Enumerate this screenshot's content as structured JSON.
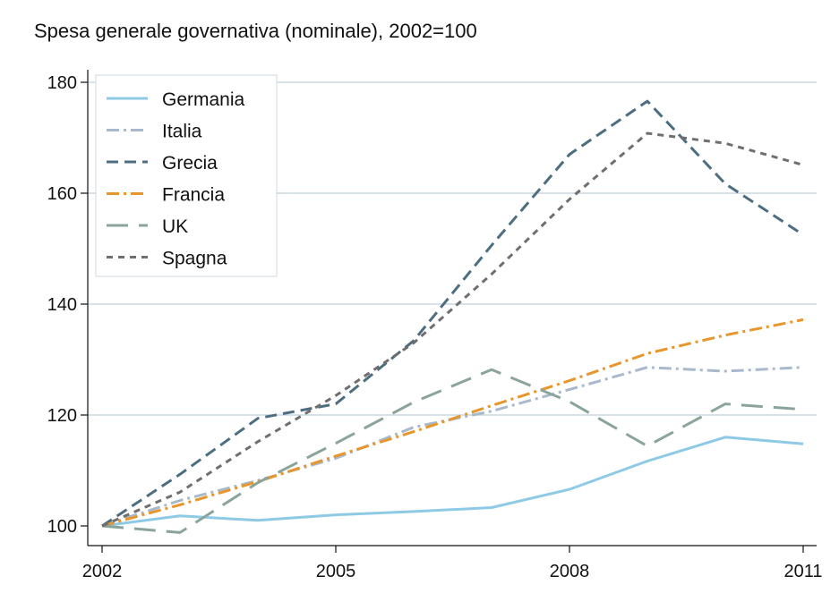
{
  "chart_data": {
    "type": "line",
    "title": "Spesa generale governativa (nominale), 2002=100",
    "xlabel": "",
    "ylabel": "",
    "x": [
      2002,
      2003,
      2004,
      2005,
      2006,
      2007,
      2008,
      2009,
      2010,
      2011
    ],
    "xlim": [
      2002,
      2011
    ],
    "ylim": [
      100,
      180
    ],
    "xticks": [
      2002,
      2005,
      2008,
      2011
    ],
    "yticks": [
      100,
      120,
      140,
      160,
      180
    ],
    "grid": "horizontal",
    "legend_position": "top-left",
    "series": [
      {
        "name": "Germania",
        "color": "#8ecae6",
        "dash": "solid",
        "values": [
          100,
          101.8,
          101.0,
          102.0,
          102.6,
          103.3,
          106.6,
          111.7,
          116.0,
          114.8
        ]
      },
      {
        "name": "Italia",
        "color": "#a7b9cb",
        "dash": "dashdot",
        "values": [
          100,
          104.6,
          108.2,
          112.2,
          117.8,
          120.7,
          124.6,
          128.6,
          127.9,
          128.6
        ]
      },
      {
        "name": "Grecia",
        "color": "#4d6e80",
        "dash": "dash",
        "values": [
          100,
          109.3,
          119.4,
          122.0,
          133.4,
          150.6,
          167.0,
          176.6,
          161.7,
          152.5
        ]
      },
      {
        "name": "Francia",
        "color": "#e8952b",
        "dash": "dashdot",
        "values": [
          100,
          103.8,
          108.0,
          112.6,
          117.0,
          121.7,
          126.2,
          131.1,
          134.4,
          137.2
        ]
      },
      {
        "name": "UK",
        "color": "#8aa49c",
        "dash": "longdash",
        "values": [
          100,
          98.8,
          107.8,
          114.9,
          122.3,
          128.2,
          122.4,
          114.4,
          122.0,
          121.0
        ]
      },
      {
        "name": "Spagna",
        "color": "#6f6f6f",
        "dash": "shortdash",
        "values": [
          100,
          106.1,
          115.2,
          123.5,
          133.0,
          145.4,
          158.9,
          170.8,
          169.0,
          165.1
        ]
      }
    ]
  }
}
